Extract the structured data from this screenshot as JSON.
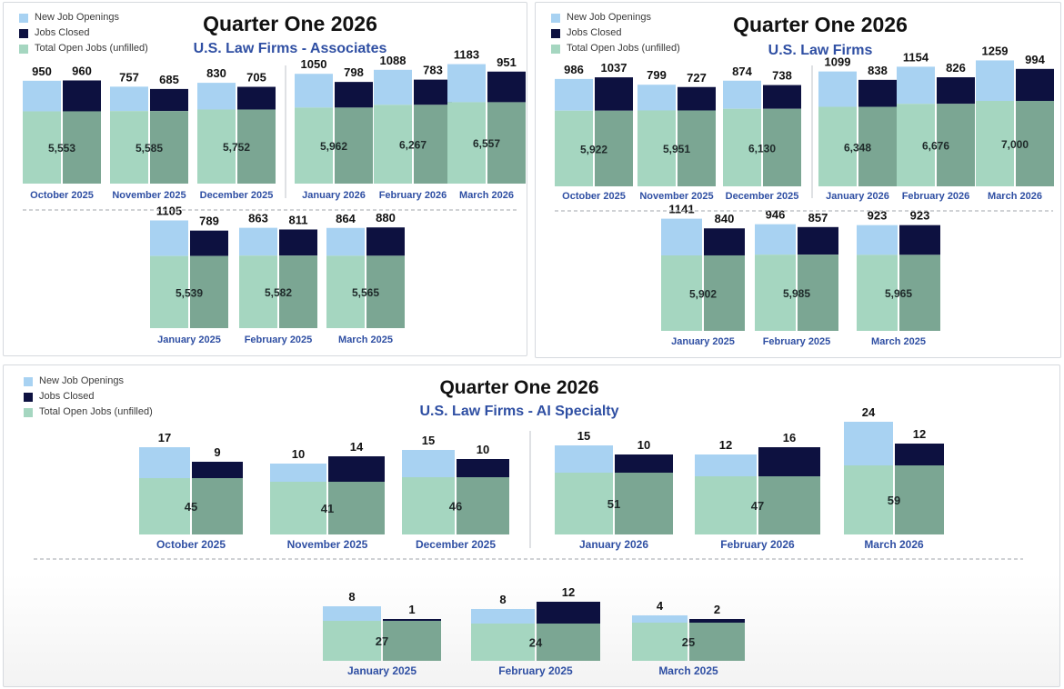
{
  "legend_colors": {
    "new_openings": "#a8d2f2",
    "jobs_closed": "#0d1140",
    "open_jobs": "#a5d6c0",
    "open_jobs_overlap": "#7ba693",
    "month_label": "#2f4fa3"
  },
  "panels": [
    {
      "title": "Quarter One 2026",
      "subtitle": "U.S. Law Firms - Associates",
      "legend": [
        "New Job Openings",
        "Jobs Closed",
        "Total Open Jobs (unfilled)"
      ]
    },
    {
      "title": "Quarter One 2026",
      "subtitle": "U.S. Law Firms",
      "legend": [
        "New Job Openings",
        "Jobs Closed",
        "Total Open Jobs (unfilled)"
      ]
    },
    {
      "title": "Quarter One 2026",
      "subtitle": "U.S. Law Firms - AI Specialty",
      "legend": [
        "New Job Openings",
        "Jobs Closed",
        "Total Open Jobs (unfilled)"
      ]
    }
  ],
  "chart_data": [
    {
      "type": "bar",
      "title": "Quarter One 2026",
      "subtitle": "U.S. Law Firms - Associates",
      "series_names": [
        "New Job Openings",
        "Jobs Closed",
        "Total Open Jobs (unfilled)"
      ],
      "months": [
        {
          "label": "October 2025",
          "new": 950,
          "closed": 960,
          "open": "5,553"
        },
        {
          "label": "November 2025",
          "new": 757,
          "closed": 685,
          "open": "5,585"
        },
        {
          "label": "December 2025",
          "new": 830,
          "closed": 705,
          "open": "5,752"
        },
        {
          "label": "January 2026",
          "new": 1050,
          "closed": 798,
          "open": "5,962"
        },
        {
          "label": "February 2026",
          "new": 1088,
          "closed": 783,
          "open": "6,267"
        },
        {
          "label": "March 2026",
          "new": 1183,
          "closed": 951,
          "open": "6,557"
        },
        {
          "label": "January 2025",
          "new": 1105,
          "closed": 789,
          "open": "5,539"
        },
        {
          "label": "February 2025",
          "new": 863,
          "closed": 811,
          "open": "5,582"
        },
        {
          "label": "March 2025",
          "new": 864,
          "closed": 880,
          "open": "5,565"
        }
      ]
    },
    {
      "type": "bar",
      "title": "Quarter One 2026",
      "subtitle": "U.S. Law Firms",
      "series_names": [
        "New Job Openings",
        "Jobs Closed",
        "Total Open Jobs (unfilled)"
      ],
      "months": [
        {
          "label": "October 2025",
          "new": 986,
          "closed": 1037,
          "open": "5,922"
        },
        {
          "label": "November 2025",
          "new": 799,
          "closed": 727,
          "open": "5,951"
        },
        {
          "label": "December 2025",
          "new": 874,
          "closed": 738,
          "open": "6,130"
        },
        {
          "label": "January 2026",
          "new": 1099,
          "closed": 838,
          "open": "6,348"
        },
        {
          "label": "February 2026",
          "new": 1154,
          "closed": 826,
          "open": "6,676"
        },
        {
          "label": "March 2026",
          "new": 1259,
          "closed": 994,
          "open": "7,000"
        },
        {
          "label": "January 2025",
          "new": 1141,
          "closed": 840,
          "open": "5,902"
        },
        {
          "label": "February 2025",
          "new": 946,
          "closed": 857,
          "open": "5,985"
        },
        {
          "label": "March 2025",
          "new": 923,
          "closed": 923,
          "open": "5,965"
        }
      ]
    },
    {
      "type": "bar",
      "title": "Quarter One 2026",
      "subtitle": "U.S. Law Firms - AI Specialty",
      "series_names": [
        "New Job Openings",
        "Jobs Closed",
        "Total Open Jobs (unfilled)"
      ],
      "months": [
        {
          "label": "October 2025",
          "new": 17,
          "closed": 9,
          "open": "45"
        },
        {
          "label": "November 2025",
          "new": 10,
          "closed": 14,
          "open": "41"
        },
        {
          "label": "December 2025",
          "new": 15,
          "closed": 10,
          "open": "46"
        },
        {
          "label": "January 2026",
          "new": 15,
          "closed": 10,
          "open": "51"
        },
        {
          "label": "February 2026",
          "new": 12,
          "closed": 16,
          "open": "47"
        },
        {
          "label": "March 2026",
          "new": 24,
          "closed": 12,
          "open": "59"
        },
        {
          "label": "January 2025",
          "new": 8,
          "closed": 1,
          "open": "27"
        },
        {
          "label": "February 2025",
          "new": 8,
          "closed": 12,
          "open": "24"
        },
        {
          "label": "March 2025",
          "new": 4,
          "closed": 2,
          "open": "25"
        }
      ]
    }
  ]
}
